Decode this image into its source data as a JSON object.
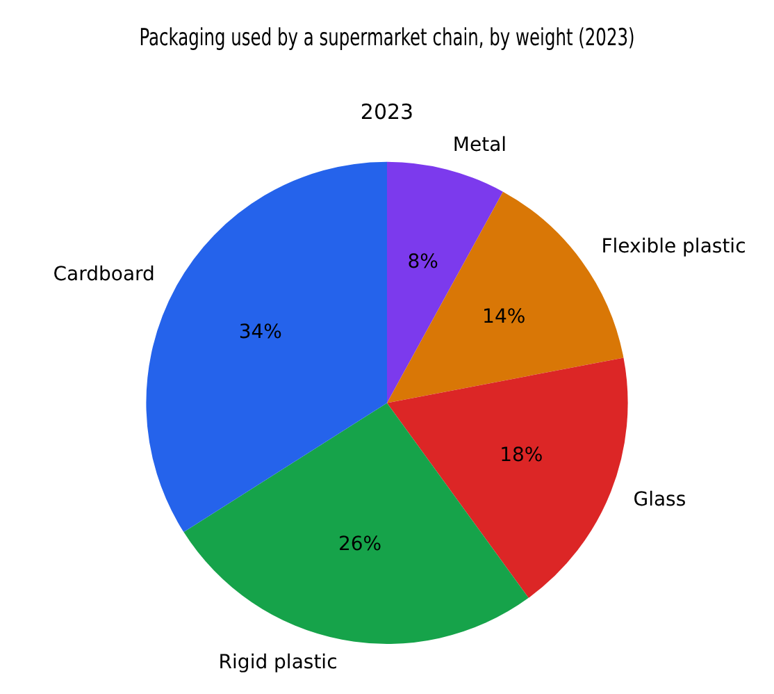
{
  "chart_data": {
    "type": "pie",
    "title": "Packaging used by a supermarket chain, by weight (2023)",
    "subtitle": "2023",
    "categories": [
      "Metal",
      "Flexible plastic",
      "Glass",
      "Rigid plastic",
      "Cardboard"
    ],
    "values": [
      8,
      14,
      18,
      26,
      34
    ],
    "value_labels": [
      "8%",
      "14%",
      "18%",
      "26%",
      "34%"
    ],
    "colors": [
      "#7c3aed",
      "#d97706",
      "#dc2626",
      "#16a34a",
      "#2563eb"
    ],
    "legend": false
  }
}
